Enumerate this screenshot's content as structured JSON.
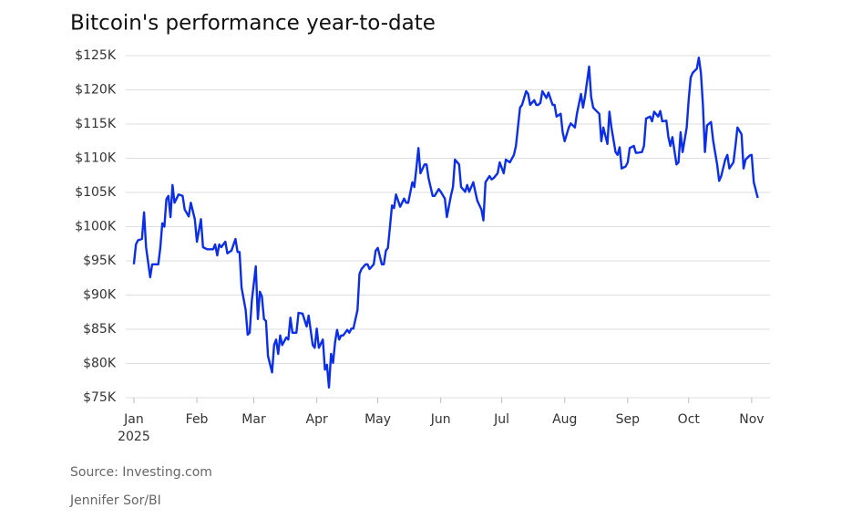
{
  "chart_data": {
    "type": "line",
    "title": "Bitcoin's performance year-to-date",
    "source": "Source: Investing.com",
    "credit": "Jennifer Sor/BI",
    "x_year_label": "2025",
    "x": [
      0,
      1,
      2,
      4,
      5,
      6,
      8,
      9,
      12,
      13,
      14,
      15,
      16,
      17,
      18,
      19,
      20,
      22,
      24,
      25,
      27,
      28,
      30,
      31,
      33,
      34,
      36,
      39,
      40,
      41,
      42,
      43,
      45,
      46,
      48,
      50,
      51,
      52,
      53,
      55,
      56,
      57,
      58,
      60,
      61,
      62,
      63,
      64,
      65,
      66,
      68,
      69,
      70,
      71,
      72,
      73,
      75,
      76,
      77,
      78,
      80,
      81,
      83,
      85,
      86,
      88,
      89,
      90,
      91,
      93,
      94,
      95,
      96,
      97,
      98,
      99,
      100,
      101,
      102,
      103,
      105,
      106,
      107,
      108,
      110,
      111,
      112,
      114,
      115,
      116,
      118,
      119,
      120,
      122,
      123,
      124,
      125,
      127,
      128,
      129,
      130,
      131,
      133,
      134,
      135,
      137,
      138,
      139,
      140,
      141,
      143,
      144,
      145,
      147,
      148,
      150,
      151,
      153,
      154,
      156,
      157,
      158,
      160,
      161,
      163,
      164,
      165,
      167,
      168,
      169,
      171,
      172,
      173,
      175,
      176,
      177,
      179,
      180,
      182,
      183,
      185,
      187,
      188,
      190,
      191,
      193,
      194,
      195,
      197,
      198,
      199,
      200,
      201,
      203,
      204,
      206,
      207,
      208,
      210,
      211,
      212,
      214,
      215,
      217,
      218,
      220,
      221,
      222,
      224,
      225,
      226,
      227,
      229,
      230,
      231,
      233,
      234,
      235,
      237,
      238,
      239,
      240,
      242,
      243,
      244,
      246,
      247,
      248,
      250,
      251,
      252,
      254,
      255,
      256,
      258,
      259,
      260,
      262,
      263,
      264,
      265,
      267,
      268,
      269,
      270,
      272,
      273,
      274,
      275,
      277,
      278,
      279,
      280,
      281,
      282,
      284,
      285,
      287,
      288,
      289,
      291,
      292,
      293,
      295,
      296,
      297,
      299,
      300,
      301,
      303,
      304,
      305,
      307
    ],
    "series": [
      {
        "name": "Bitcoin",
        "color": "#0b2ee6",
        "values": [
          94.5,
          97.4,
          98,
          98.2,
          102.1,
          97,
          92.6,
          94.5,
          94.5,
          96.9,
          100.5,
          100,
          104,
          104.5,
          101.4,
          106.1,
          103.5,
          104.7,
          104.5,
          102.5,
          101.5,
          103.5,
          101.1,
          97.8,
          101.1,
          97,
          96.7,
          96.7,
          97.4,
          95.8,
          97.4,
          97,
          97.8,
          96.1,
          96.5,
          98.2,
          96.3,
          96.3,
          91.1,
          87.8,
          84.2,
          84.5,
          89.1,
          94.2,
          86.5,
          90.5,
          89.8,
          86.5,
          86.2,
          81.1,
          78.7,
          82.7,
          83.5,
          81.4,
          84.1,
          82.7,
          83.8,
          83.5,
          86.7,
          84.5,
          84.5,
          87.4,
          87.3,
          85.4,
          87,
          82.7,
          82.3,
          85.1,
          82.3,
          83.5,
          79.1,
          79.8,
          76.5,
          81.4,
          80.1,
          83.1,
          84.9,
          83.5,
          84.1,
          84.1,
          84.9,
          84.5,
          85.1,
          85.1,
          87.8,
          93.1,
          93.8,
          94.5,
          94.5,
          93.8,
          94.5,
          96.5,
          96.9,
          94.5,
          94.5,
          96.5,
          96.9,
          103.1,
          102.7,
          104.7,
          103.8,
          102.9,
          104.1,
          103.5,
          103.5,
          106.5,
          105.8,
          108.5,
          111.5,
          107.8,
          109.1,
          109.1,
          107.1,
          104.5,
          104.5,
          105.5,
          105.1,
          104.1,
          101.4,
          104.5,
          105.8,
          109.8,
          109.1,
          105.8,
          105.1,
          106.1,
          105.1,
          106.5,
          105.1,
          103.8,
          102.5,
          100.9,
          106.5,
          107.4,
          106.9,
          107.1,
          107.8,
          109.4,
          107.8,
          109.8,
          109.4,
          110.5,
          111.8,
          117.4,
          117.8,
          119.8,
          119.4,
          117.8,
          118.5,
          117.8,
          117.8,
          118.1,
          119.8,
          118.8,
          119.6,
          117.8,
          117.8,
          116.1,
          116.5,
          113.8,
          112.5,
          114.5,
          115.1,
          114.5,
          116.5,
          119.4,
          117.4,
          119,
          123.4,
          119,
          117.4,
          117.1,
          116.5,
          112.5,
          114.5,
          112.1,
          116.8,
          114.5,
          110.9,
          110.5,
          111.6,
          108.5,
          108.8,
          109.4,
          111.5,
          111.8,
          110.8,
          110.8,
          110.9,
          111.8,
          115.8,
          116.1,
          115.4,
          116.8,
          116.1,
          116.9,
          115.4,
          115.5,
          113.1,
          111.8,
          113.1,
          109.1,
          109.4,
          113.8,
          110.9,
          114.5,
          118.6,
          121.8,
          122.5,
          123.1,
          124.7,
          122.5,
          117.8,
          110.9,
          114.8,
          115.3,
          112.6,
          109.1,
          106.7,
          107.4,
          109.8,
          110.5,
          108.5,
          109.4,
          111.8,
          114.5,
          113.5,
          108.5,
          109.8,
          110.4,
          110.5,
          106.5,
          104.2
        ]
      }
    ],
    "xlim": [
      -4,
      313
    ],
    "xticks": [
      {
        "value": 0,
        "label": "Jan"
      },
      {
        "value": 31,
        "label": "Feb"
      },
      {
        "value": 59,
        "label": "Mar"
      },
      {
        "value": 90,
        "label": "Apr"
      },
      {
        "value": 120,
        "label": "May"
      },
      {
        "value": 151,
        "label": "Jun"
      },
      {
        "value": 181,
        "label": "Jul"
      },
      {
        "value": 212,
        "label": "Aug"
      },
      {
        "value": 243,
        "label": "Sep"
      },
      {
        "value": 273,
        "label": "Oct"
      },
      {
        "value": 304,
        "label": "Nov"
      }
    ],
    "ylim": [
      75,
      125
    ],
    "yticks": [
      {
        "value": 75,
        "label": "$75K"
      },
      {
        "value": 80,
        "label": "$80K"
      },
      {
        "value": 85,
        "label": "$85K"
      },
      {
        "value": 90,
        "label": "$90K"
      },
      {
        "value": 95,
        "label": "$95K"
      },
      {
        "value": 100,
        "label": "$100K"
      },
      {
        "value": 105,
        "label": "$105K"
      },
      {
        "value": 110,
        "label": "$110K"
      },
      {
        "value": 115,
        "label": "$115K"
      },
      {
        "value": 120,
        "label": "$120K"
      },
      {
        "value": 125,
        "label": "$125K"
      }
    ],
    "grid": true
  }
}
